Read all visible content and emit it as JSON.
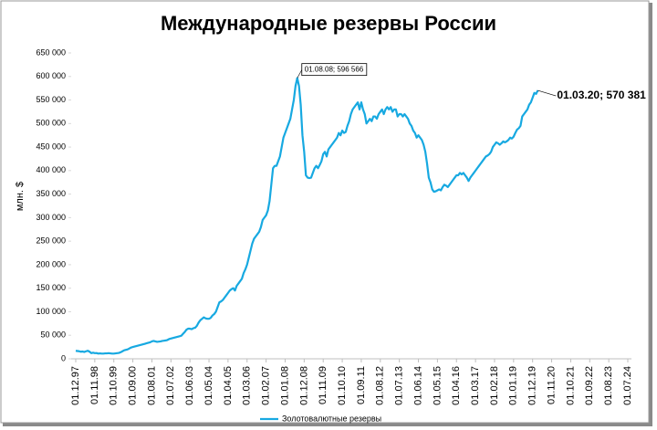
{
  "chart_data": {
    "type": "line",
    "title": "Международные резервы России",
    "ylabel": "млн. $",
    "legend": "bottom",
    "grid": false,
    "ylim": [
      0,
      650000
    ],
    "yticks": [
      0,
      {
        "value": 50000,
        "label": "50 000"
      },
      {
        "value": 100000,
        "label": "100 000"
      },
      {
        "value": 150000,
        "label": "150 000"
      },
      {
        "value": 200000,
        "label": "200 000"
      },
      {
        "value": 250000,
        "label": "250 000"
      },
      {
        "value": 300000,
        "label": "300 000"
      },
      {
        "value": 350000,
        "label": "350 000"
      },
      {
        "value": 400000,
        "label": "400 000"
      },
      {
        "value": 450000,
        "label": "450 000"
      },
      {
        "value": 500000,
        "label": "500 000"
      },
      {
        "value": 550000,
        "label": "550 000"
      },
      {
        "value": 600000,
        "label": "600 000"
      },
      {
        "value": 650000,
        "label": "650 000"
      }
    ],
    "categories": [
      "01.12.97",
      null,
      null,
      null,
      null,
      null,
      null,
      null,
      null,
      null,
      null,
      "01.11.98",
      null,
      null,
      null,
      null,
      null,
      null,
      null,
      null,
      null,
      null,
      "01.10.99",
      null,
      null,
      null,
      null,
      null,
      null,
      null,
      null,
      null,
      null,
      "01.09.00",
      null,
      null,
      null,
      null,
      null,
      null,
      null,
      null,
      null,
      null,
      "01.08.01",
      null,
      null,
      null,
      null,
      null,
      null,
      null,
      null,
      null,
      null,
      "01.07.02",
      null,
      null,
      null,
      null,
      null,
      null,
      null,
      null,
      null,
      null,
      "01.06.03",
      null,
      null,
      null,
      null,
      null,
      null,
      null,
      null,
      null,
      null,
      "01.05.04",
      null,
      null,
      null,
      null,
      null,
      null,
      null,
      null,
      null,
      null,
      "01.04.05",
      null,
      null,
      null,
      null,
      null,
      null,
      null,
      null,
      null,
      null,
      "01.03.06",
      null,
      null,
      null,
      null,
      null,
      null,
      null,
      null,
      null,
      null,
      "01.02.07",
      null,
      null,
      null,
      null,
      null,
      null,
      null,
      null,
      null,
      null,
      "01.01.08",
      null,
      null,
      null,
      null,
      null,
      null,
      null,
      null,
      null,
      null,
      "01.12.08",
      null,
      null,
      null,
      null,
      null,
      null,
      null,
      null,
      null,
      null,
      "01.11.09",
      null,
      null,
      null,
      null,
      null,
      null,
      null,
      null,
      null,
      null,
      "01.10.10",
      null,
      null,
      null,
      null,
      null,
      null,
      null,
      null,
      null,
      null,
      "01.09.11",
      null,
      null,
      null,
      null,
      null,
      null,
      null,
      null,
      null,
      null,
      "01.08.12",
      null,
      null,
      null,
      null,
      null,
      null,
      null,
      null,
      null,
      null,
      "01.07.13",
      null,
      null,
      null,
      null,
      null,
      null,
      null,
      null,
      null,
      null,
      "01.06.14",
      null,
      null,
      null,
      null,
      null,
      null,
      null,
      null,
      null,
      null,
      "01.05.15",
      null,
      null,
      null,
      null,
      null,
      null,
      null,
      null,
      null,
      null,
      "01.04.16",
      null,
      null,
      null,
      null,
      null,
      null,
      null,
      null,
      null,
      null,
      "01.03.17",
      null,
      null,
      null,
      null,
      null,
      null,
      null,
      null,
      null,
      null,
      "01.02.18",
      null,
      null,
      null,
      null,
      null,
      null,
      null,
      null,
      null,
      null,
      "01.01.19",
      null,
      null,
      null,
      null,
      null,
      null,
      null,
      null,
      null,
      null,
      "01.12.19",
      null,
      null,
      null,
      null,
      null,
      null,
      null,
      null,
      null,
      null,
      "01.11.20",
      null,
      null,
      null,
      null,
      null,
      null,
      null,
      null,
      null,
      null,
      "01.10.21",
      null,
      null,
      null,
      null,
      null,
      null,
      null,
      null,
      null,
      null,
      "01.09.22",
      null,
      null,
      null,
      null,
      null,
      null,
      null,
      null,
      null,
      null,
      "01.08.23",
      null,
      null,
      null,
      null,
      null,
      null,
      null,
      null,
      null,
      null,
      "01.07.24"
    ],
    "series": [
      {
        "name": "Золотовалютные резервы",
        "color": "#17a9e1",
        "values": [
          17000,
          16500,
          16000,
          15000,
          15500,
          14500,
          16000,
          17000,
          15000,
          12000,
          13000,
          12000,
          12200,
          11000,
          11500,
          11000,
          11000,
          11500,
          11500,
          12000,
          11500,
          11000,
          11000,
          11500,
          12000,
          12500,
          14000,
          16000,
          18000,
          19000,
          20000,
          22000,
          24000,
          25000,
          26000,
          27000,
          28000,
          29000,
          30000,
          31000,
          32000,
          33000,
          34000,
          35000,
          37000,
          38000,
          37000,
          36000,
          36500,
          37000,
          38000,
          38500,
          39000,
          40000,
          42000,
          43000,
          44000,
          45000,
          46000,
          47000,
          48000,
          49000,
          53000,
          57000,
          62000,
          64000,
          64000,
          63000,
          65000,
          66000,
          70000,
          77000,
          82000,
          85000,
          88000,
          86000,
          85000,
          85000,
          87000,
          92000,
          95000,
          100000,
          110000,
          120000,
          122000,
          125000,
          130000,
          135000,
          140000,
          145000,
          148000,
          150000,
          145000,
          155000,
          160000,
          165000,
          170000,
          182000,
          190000,
          200000,
          215000,
          230000,
          245000,
          255000,
          260000,
          265000,
          270000,
          280000,
          295000,
          300000,
          305000,
          315000,
          335000,
          370000,
          405000,
          410000,
          410000,
          420000,
          430000,
          450000,
          470000,
          480000,
          490000,
          500000,
          510000,
          530000,
          550000,
          580000,
          596566,
          580000,
          540000,
          475000,
          440000,
          390000,
          385000,
          384000,
          385000,
          395000,
          405000,
          410000,
          405000,
          412000,
          420000,
          435000,
          440000,
          430000,
          445000,
          450000,
          455000,
          460000,
          465000,
          470000,
          480000,
          475000,
          485000,
          480000,
          482000,
          495000,
          505000,
          520000,
          530000,
          535000,
          540000,
          545000,
          530000,
          545000,
          530000,
          520000,
          500000,
          505000,
          510000,
          505000,
          515000,
          515000,
          510000,
          520000,
          525000,
          530000,
          520000,
          530000,
          535000,
          530000,
          535000,
          525000,
          530000,
          530000,
          515000,
          520000,
          520000,
          515000,
          520000,
          515000,
          510000,
          500000,
          495000,
          485000,
          480000,
          470000,
          475000,
          470000,
          465000,
          455000,
          440000,
          415000,
          385000,
          375000,
          360000,
          355000,
          356000,
          358000,
          360000,
          358000,
          365000,
          370000,
          368000,
          365000,
          370000,
          375000,
          380000,
          385000,
          390000,
          390000,
          395000,
          392000,
          395000,
          390000,
          385000,
          378000,
          385000,
          390000,
          395000,
          400000,
          405000,
          410000,
          415000,
          420000,
          425000,
          430000,
          432000,
          435000,
          440000,
          450000,
          455000,
          460000,
          458000,
          455000,
          458000,
          462000,
          460000,
          462000,
          465000,
          470000,
          468000,
          472000,
          480000,
          487000,
          490000,
          495000,
          515000,
          520000,
          525000,
          530000,
          540000,
          545000,
          555000,
          565000,
          563000,
          570381,
          null,
          null,
          null,
          null,
          null,
          null,
          null,
          null,
          null,
          null,
          null,
          null,
          null,
          null,
          null,
          null,
          null,
          null,
          null,
          null,
          null,
          null,
          null,
          null,
          null,
          null,
          null,
          null,
          null,
          null,
          null,
          null,
          null,
          null,
          null,
          null,
          null,
          null,
          null,
          null,
          null,
          null,
          null,
          null,
          null,
          null,
          null,
          null,
          null,
          null,
          null,
          null
        ],
        "value_labels": [
          null,
          null,
          null,
          null,
          null,
          null,
          null,
          null,
          null,
          null,
          null,
          null,
          null,
          null,
          null,
          null,
          null,
          null,
          null,
          null,
          null,
          null,
          null,
          null,
          null,
          null,
          null,
          null,
          null,
          null,
          null,
          null,
          null,
          null,
          null,
          null,
          null,
          null,
          null,
          null,
          null,
          null,
          null,
          null,
          null,
          null,
          null,
          null,
          null,
          null,
          null,
          null,
          null,
          null,
          null,
          null,
          null,
          null,
          null,
          null,
          null,
          null,
          null,
          null,
          null,
          null,
          null,
          null,
          null,
          null,
          null,
          null,
          null,
          null,
          null,
          null,
          null,
          null,
          null,
          null,
          null,
          null,
          null,
          null,
          null,
          null,
          null,
          null,
          null,
          null,
          null,
          null,
          null,
          null,
          null,
          null,
          null,
          null,
          null,
          null,
          null,
          null,
          null,
          null,
          null,
          null,
          null,
          null,
          null,
          null,
          null,
          null,
          null,
          null,
          null,
          null,
          null,
          null,
          null,
          null,
          null,
          null,
          null,
          null,
          null,
          null,
          null,
          null,
          "01.08.08; 596 566",
          null,
          null,
          null,
          null,
          null,
          null,
          null,
          null,
          null,
          null,
          null,
          null,
          null,
          null,
          null,
          null,
          null,
          null,
          null,
          null,
          null,
          null,
          null,
          null,
          null,
          null,
          null,
          null,
          null,
          null,
          null,
          null,
          null,
          null,
          null,
          null,
          null,
          null,
          null,
          null,
          null,
          null,
          null,
          null,
          null,
          null,
          null,
          null,
          null,
          null,
          null,
          null,
          null,
          null,
          null,
          null,
          null,
          null,
          null,
          null,
          null,
          null,
          null,
          null,
          null,
          null,
          null,
          null,
          null,
          null,
          null,
          null,
          null,
          null,
          null,
          null,
          null,
          null,
          null,
          null,
          null,
          null,
          null,
          null,
          null,
          null,
          null,
          null,
          null,
          null,
          null,
          null,
          null,
          null,
          null,
          null,
          null,
          null,
          null,
          null,
          null,
          null,
          null,
          null,
          null,
          null,
          null,
          null,
          null,
          null,
          null,
          null,
          null,
          null,
          null,
          null,
          null,
          null,
          null,
          null,
          null,
          null,
          null,
          null,
          null,
          null,
          null,
          null,
          null,
          null,
          null,
          null,
          null,
          null,
          null,
          null,
          null,
          null,
          "01.03.20; 570 381",
          null,
          null,
          null,
          null,
          null,
          null,
          null,
          null,
          null,
          null,
          null,
          null,
          null,
          null,
          null,
          null,
          null,
          null,
          null,
          null,
          null,
          null,
          null,
          null,
          null,
          null,
          null,
          null,
          null,
          null,
          null,
          null,
          null,
          null,
          null,
          null,
          null,
          null,
          null,
          null,
          null,
          null,
          null,
          null,
          null,
          null,
          null,
          null,
          null,
          null,
          null,
          null
        ]
      }
    ]
  }
}
